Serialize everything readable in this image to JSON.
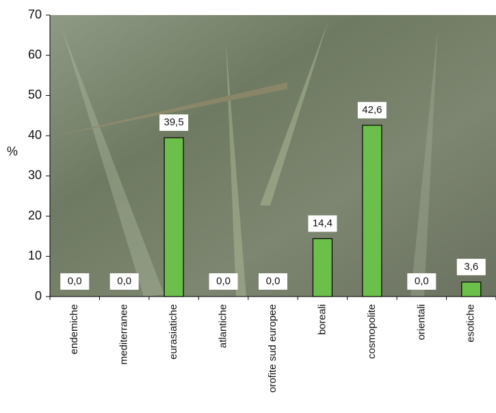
{
  "chart_data": {
    "type": "bar",
    "ylabel": "%",
    "categories": [
      "endemiche",
      "mediterranee",
      "eurasiatiche",
      "atlantiche",
      "orofite sud europee",
      "boreali",
      "cosmopolite",
      "orientali",
      "esotiche"
    ],
    "values": [
      0,
      0,
      39.5,
      0,
      0,
      14.4,
      42.6,
      0,
      3.6
    ],
    "value_labels": [
      "0,0",
      "0,0",
      "39,5",
      "0,0",
      "0,0",
      "14,4",
      "42,6",
      "0,0",
      "3,6"
    ],
    "color": "#6cbf4a",
    "ylim": [
      0,
      70
    ],
    "yticks": [
      0,
      10,
      20,
      30,
      40,
      50,
      60,
      70
    ]
  }
}
